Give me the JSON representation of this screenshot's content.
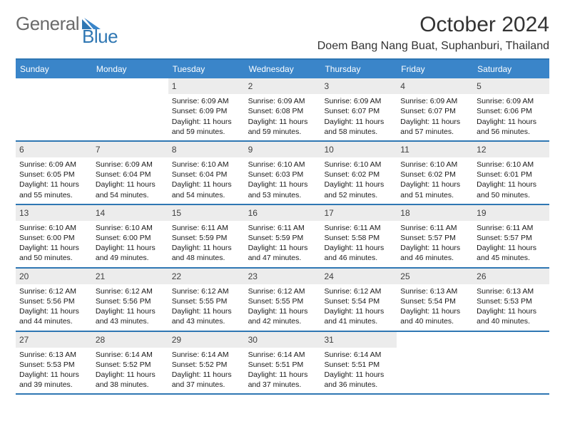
{
  "logo": {
    "word1": "General",
    "word2": "Blue"
  },
  "header": {
    "month_title": "October 2024",
    "location": "Doem Bang Nang Buat, Suphanburi, Thailand"
  },
  "styling": {
    "accent_color": "#2f77b3",
    "header_bg": "#3a85c9",
    "daynum_bg": "#ececec",
    "page_bg": "#ffffff",
    "dow_fontsize": 12,
    "body_fontsize": 10.5,
    "title_fontsize": 30,
    "location_fontsize": 16
  },
  "days_of_week": [
    "Sunday",
    "Monday",
    "Tuesday",
    "Wednesday",
    "Thursday",
    "Friday",
    "Saturday"
  ],
  "weeks": [
    [
      {
        "empty": true
      },
      {
        "empty": true
      },
      {
        "n": "1",
        "sunrise": "Sunrise: 6:09 AM",
        "sunset": "Sunset: 6:09 PM",
        "daylight": "Daylight: 11 hours and 59 minutes."
      },
      {
        "n": "2",
        "sunrise": "Sunrise: 6:09 AM",
        "sunset": "Sunset: 6:08 PM",
        "daylight": "Daylight: 11 hours and 59 minutes."
      },
      {
        "n": "3",
        "sunrise": "Sunrise: 6:09 AM",
        "sunset": "Sunset: 6:07 PM",
        "daylight": "Daylight: 11 hours and 58 minutes."
      },
      {
        "n": "4",
        "sunrise": "Sunrise: 6:09 AM",
        "sunset": "Sunset: 6:07 PM",
        "daylight": "Daylight: 11 hours and 57 minutes."
      },
      {
        "n": "5",
        "sunrise": "Sunrise: 6:09 AM",
        "sunset": "Sunset: 6:06 PM",
        "daylight": "Daylight: 11 hours and 56 minutes."
      }
    ],
    [
      {
        "n": "6",
        "sunrise": "Sunrise: 6:09 AM",
        "sunset": "Sunset: 6:05 PM",
        "daylight": "Daylight: 11 hours and 55 minutes."
      },
      {
        "n": "7",
        "sunrise": "Sunrise: 6:09 AM",
        "sunset": "Sunset: 6:04 PM",
        "daylight": "Daylight: 11 hours and 54 minutes."
      },
      {
        "n": "8",
        "sunrise": "Sunrise: 6:10 AM",
        "sunset": "Sunset: 6:04 PM",
        "daylight": "Daylight: 11 hours and 54 minutes."
      },
      {
        "n": "9",
        "sunrise": "Sunrise: 6:10 AM",
        "sunset": "Sunset: 6:03 PM",
        "daylight": "Daylight: 11 hours and 53 minutes."
      },
      {
        "n": "10",
        "sunrise": "Sunrise: 6:10 AM",
        "sunset": "Sunset: 6:02 PM",
        "daylight": "Daylight: 11 hours and 52 minutes."
      },
      {
        "n": "11",
        "sunrise": "Sunrise: 6:10 AM",
        "sunset": "Sunset: 6:02 PM",
        "daylight": "Daylight: 11 hours and 51 minutes."
      },
      {
        "n": "12",
        "sunrise": "Sunrise: 6:10 AM",
        "sunset": "Sunset: 6:01 PM",
        "daylight": "Daylight: 11 hours and 50 minutes."
      }
    ],
    [
      {
        "n": "13",
        "sunrise": "Sunrise: 6:10 AM",
        "sunset": "Sunset: 6:00 PM",
        "daylight": "Daylight: 11 hours and 50 minutes."
      },
      {
        "n": "14",
        "sunrise": "Sunrise: 6:10 AM",
        "sunset": "Sunset: 6:00 PM",
        "daylight": "Daylight: 11 hours and 49 minutes."
      },
      {
        "n": "15",
        "sunrise": "Sunrise: 6:11 AM",
        "sunset": "Sunset: 5:59 PM",
        "daylight": "Daylight: 11 hours and 48 minutes."
      },
      {
        "n": "16",
        "sunrise": "Sunrise: 6:11 AM",
        "sunset": "Sunset: 5:59 PM",
        "daylight": "Daylight: 11 hours and 47 minutes."
      },
      {
        "n": "17",
        "sunrise": "Sunrise: 6:11 AM",
        "sunset": "Sunset: 5:58 PM",
        "daylight": "Daylight: 11 hours and 46 minutes."
      },
      {
        "n": "18",
        "sunrise": "Sunrise: 6:11 AM",
        "sunset": "Sunset: 5:57 PM",
        "daylight": "Daylight: 11 hours and 46 minutes."
      },
      {
        "n": "19",
        "sunrise": "Sunrise: 6:11 AM",
        "sunset": "Sunset: 5:57 PM",
        "daylight": "Daylight: 11 hours and 45 minutes."
      }
    ],
    [
      {
        "n": "20",
        "sunrise": "Sunrise: 6:12 AM",
        "sunset": "Sunset: 5:56 PM",
        "daylight": "Daylight: 11 hours and 44 minutes."
      },
      {
        "n": "21",
        "sunrise": "Sunrise: 6:12 AM",
        "sunset": "Sunset: 5:56 PM",
        "daylight": "Daylight: 11 hours and 43 minutes."
      },
      {
        "n": "22",
        "sunrise": "Sunrise: 6:12 AM",
        "sunset": "Sunset: 5:55 PM",
        "daylight": "Daylight: 11 hours and 43 minutes."
      },
      {
        "n": "23",
        "sunrise": "Sunrise: 6:12 AM",
        "sunset": "Sunset: 5:55 PM",
        "daylight": "Daylight: 11 hours and 42 minutes."
      },
      {
        "n": "24",
        "sunrise": "Sunrise: 6:12 AM",
        "sunset": "Sunset: 5:54 PM",
        "daylight": "Daylight: 11 hours and 41 minutes."
      },
      {
        "n": "25",
        "sunrise": "Sunrise: 6:13 AM",
        "sunset": "Sunset: 5:54 PM",
        "daylight": "Daylight: 11 hours and 40 minutes."
      },
      {
        "n": "26",
        "sunrise": "Sunrise: 6:13 AM",
        "sunset": "Sunset: 5:53 PM",
        "daylight": "Daylight: 11 hours and 40 minutes."
      }
    ],
    [
      {
        "n": "27",
        "sunrise": "Sunrise: 6:13 AM",
        "sunset": "Sunset: 5:53 PM",
        "daylight": "Daylight: 11 hours and 39 minutes."
      },
      {
        "n": "28",
        "sunrise": "Sunrise: 6:14 AM",
        "sunset": "Sunset: 5:52 PM",
        "daylight": "Daylight: 11 hours and 38 minutes."
      },
      {
        "n": "29",
        "sunrise": "Sunrise: 6:14 AM",
        "sunset": "Sunset: 5:52 PM",
        "daylight": "Daylight: 11 hours and 37 minutes."
      },
      {
        "n": "30",
        "sunrise": "Sunrise: 6:14 AM",
        "sunset": "Sunset: 5:51 PM",
        "daylight": "Daylight: 11 hours and 37 minutes."
      },
      {
        "n": "31",
        "sunrise": "Sunrise: 6:14 AM",
        "sunset": "Sunset: 5:51 PM",
        "daylight": "Daylight: 11 hours and 36 minutes."
      },
      {
        "empty": true
      },
      {
        "empty": true
      }
    ]
  ]
}
